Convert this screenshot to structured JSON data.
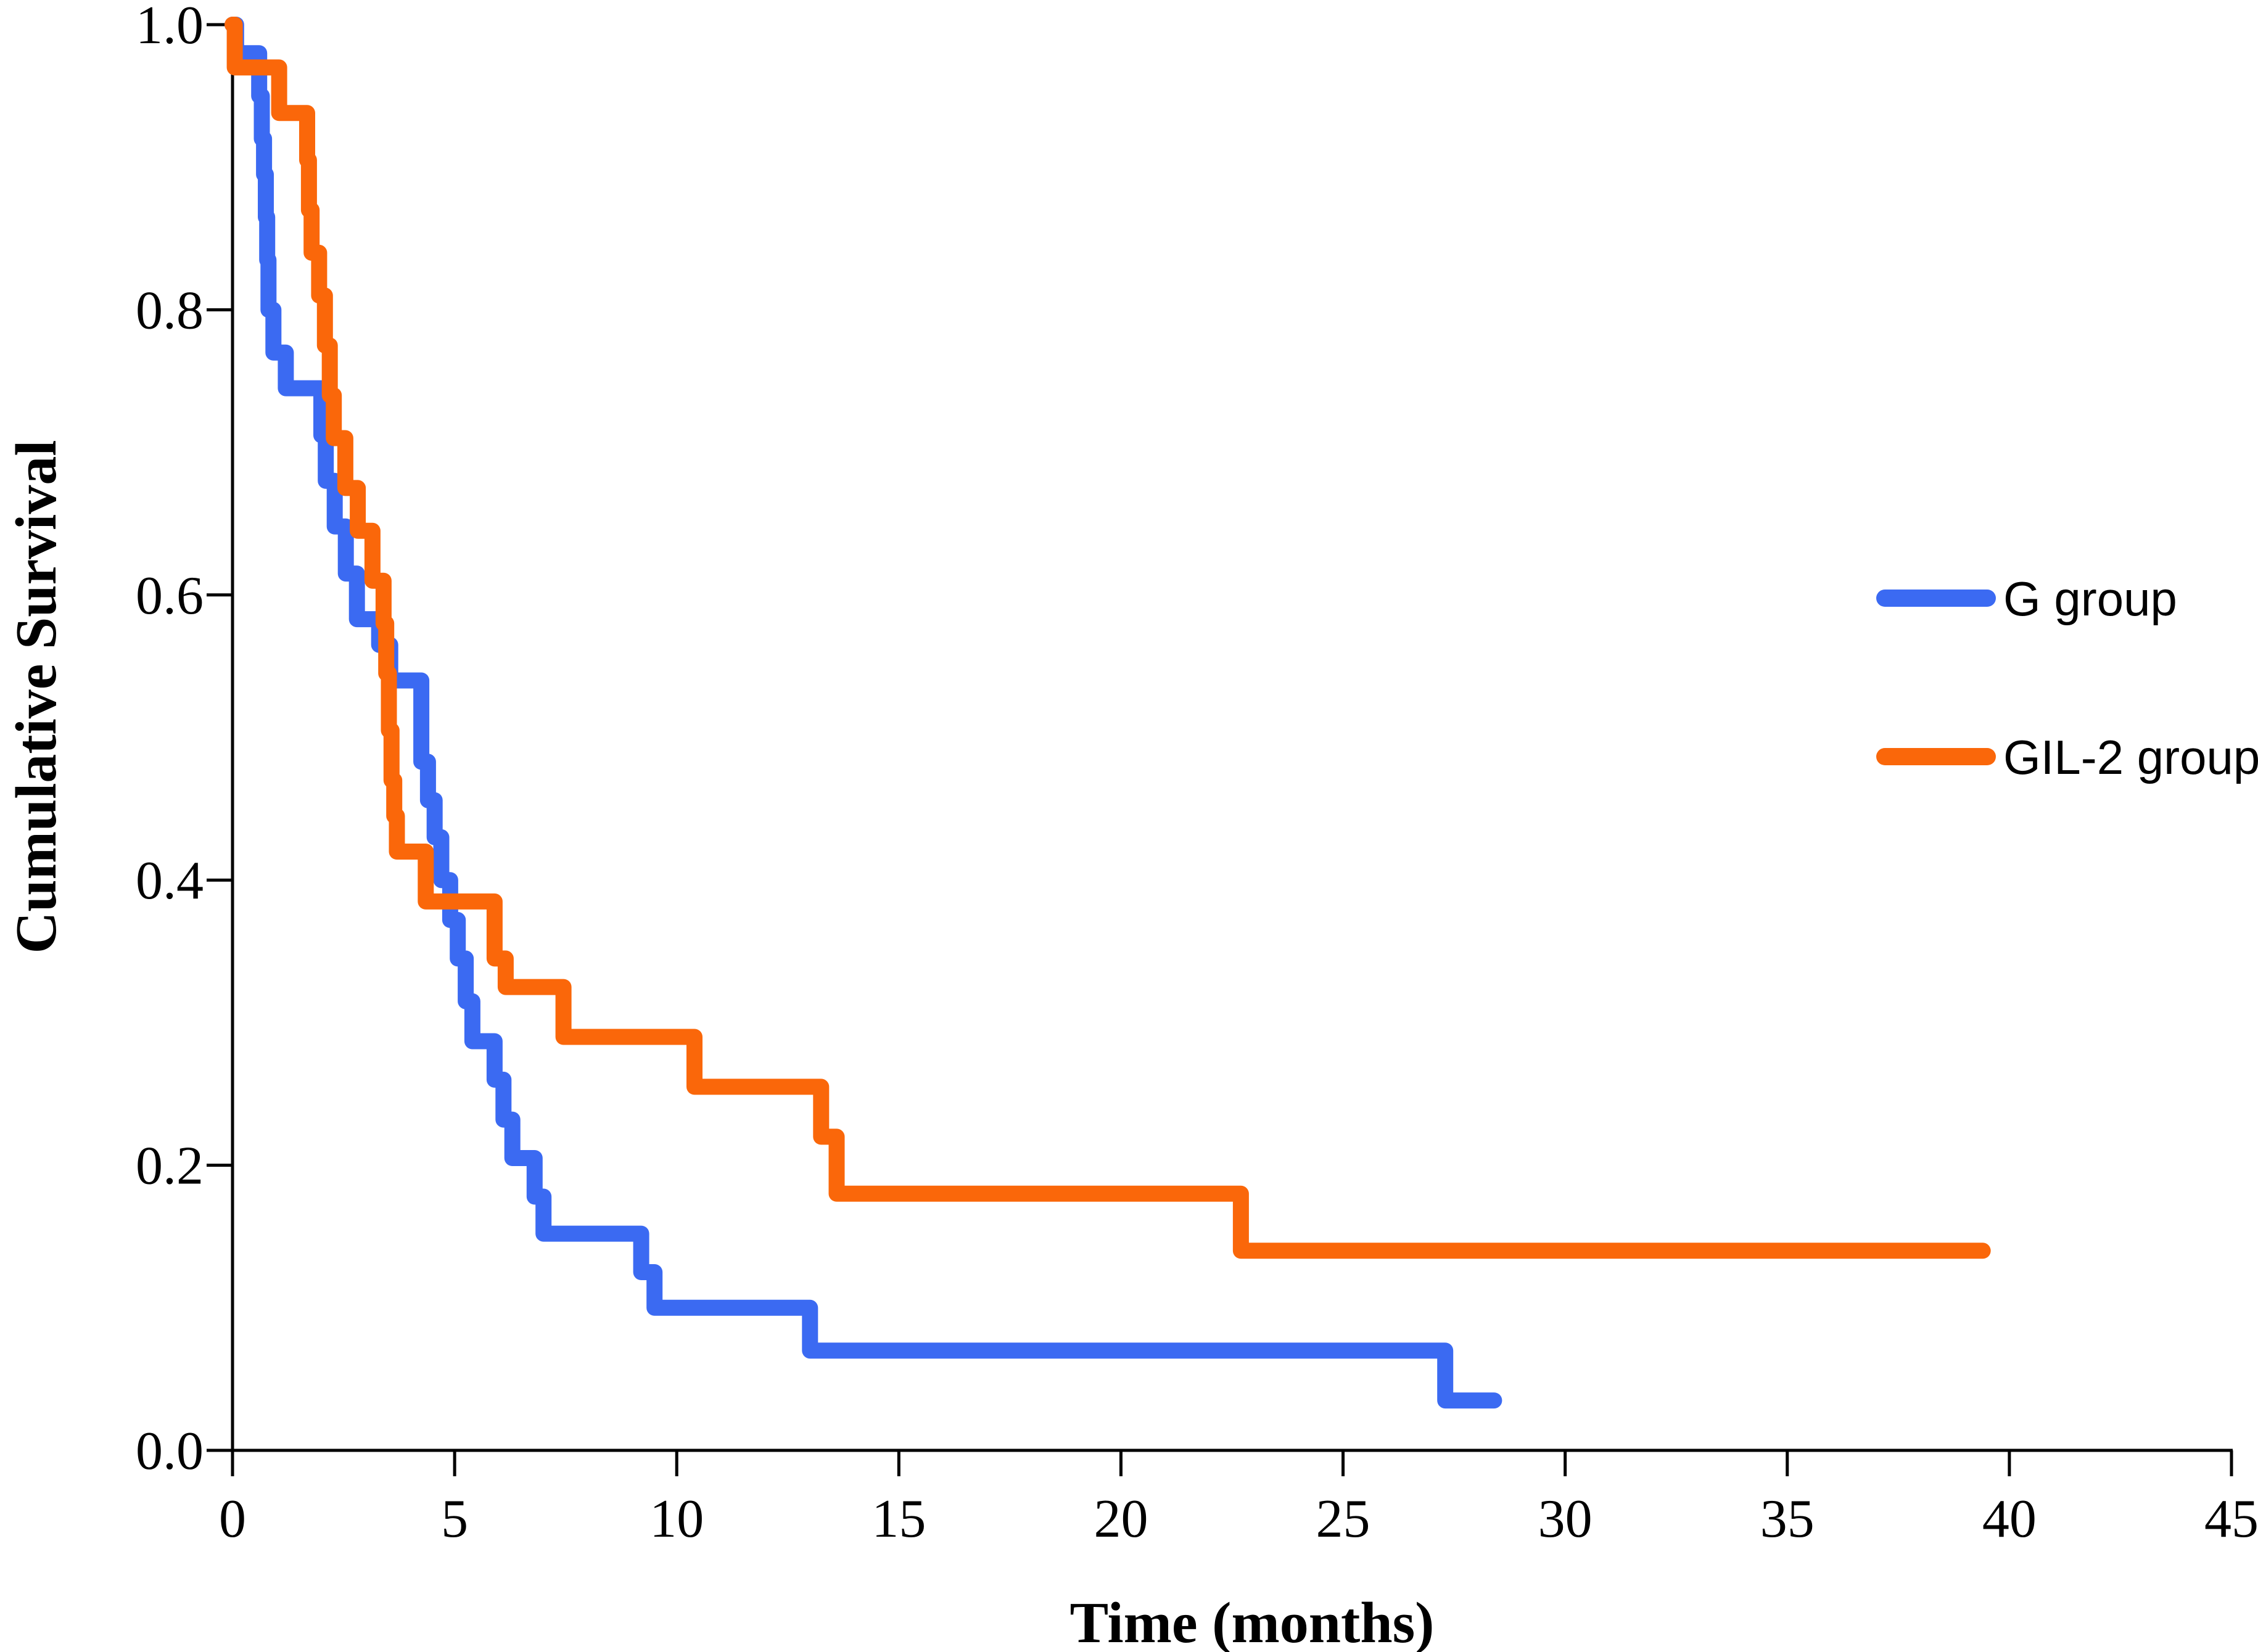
{
  "figure": {
    "background_color": "#ffffff",
    "text_color": "#000000"
  },
  "chart_data": {
    "type": "line",
    "subtype": "kaplan-meier-step-survival",
    "title": "",
    "xlabel": "Time (months)",
    "ylabel": "Cumulative Survival",
    "xlim": [
      0,
      45
    ],
    "ylim": [
      0.0,
      1.0
    ],
    "x_ticks": [
      0,
      5,
      10,
      15,
      20,
      25,
      30,
      35,
      40,
      45
    ],
    "x_tick_labels": [
      "0",
      "5",
      "10",
      "15",
      "20",
      "25",
      "30",
      "35",
      "40",
      "45"
    ],
    "y_ticks": [
      0.0,
      0.2,
      0.4,
      0.6,
      0.8,
      1.0
    ],
    "y_tick_labels": [
      "0.0",
      "0.2",
      "0.4",
      "0.6",
      "0.8",
      "1.0"
    ],
    "grid": false,
    "legend_position": "right-inside",
    "series": [
      {
        "name": "G group",
        "color": "#3B6AF2",
        "start": [
          0,
          1.0
        ],
        "steps": [
          [
            0.08,
            0.98
          ],
          [
            0.6,
            0.95
          ],
          [
            0.66,
            0.92
          ],
          [
            0.71,
            0.895
          ],
          [
            0.75,
            0.865
          ],
          [
            0.78,
            0.835
          ],
          [
            0.81,
            0.8
          ],
          [
            0.92,
            0.77
          ],
          [
            1.2,
            0.745
          ],
          [
            2.0,
            0.712
          ],
          [
            2.1,
            0.68
          ],
          [
            2.3,
            0.648
          ],
          [
            2.55,
            0.615
          ],
          [
            2.8,
            0.583
          ],
          [
            3.3,
            0.565
          ],
          [
            3.55,
            0.54
          ],
          [
            4.25,
            0.483
          ],
          [
            4.4,
            0.456
          ],
          [
            4.55,
            0.43
          ],
          [
            4.7,
            0.4
          ],
          [
            4.9,
            0.372
          ],
          [
            5.07,
            0.345
          ],
          [
            5.25,
            0.315
          ],
          [
            5.4,
            0.287
          ],
          [
            5.9,
            0.26
          ],
          [
            6.1,
            0.232
          ],
          [
            6.3,
            0.205
          ],
          [
            6.8,
            0.178
          ],
          [
            7.0,
            0.152
          ],
          [
            9.2,
            0.125
          ],
          [
            9.5,
            0.1
          ],
          [
            13.0,
            0.07
          ],
          [
            27.3,
            0.035
          ]
        ],
        "end_x": 28.4
      },
      {
        "name": "GIL-2 group",
        "color": "#FA670A",
        "start": [
          0,
          1.0
        ],
        "steps": [
          [
            0.05,
            0.97
          ],
          [
            1.05,
            0.938
          ],
          [
            1.68,
            0.905
          ],
          [
            1.72,
            0.87
          ],
          [
            1.78,
            0.84
          ],
          [
            1.95,
            0.81
          ],
          [
            2.08,
            0.775
          ],
          [
            2.19,
            0.74
          ],
          [
            2.28,
            0.71
          ],
          [
            2.54,
            0.675
          ],
          [
            2.82,
            0.645
          ],
          [
            3.15,
            0.61
          ],
          [
            3.4,
            0.58
          ],
          [
            3.46,
            0.545
          ],
          [
            3.52,
            0.505
          ],
          [
            3.58,
            0.47
          ],
          [
            3.64,
            0.445
          ],
          [
            3.7,
            0.42
          ],
          [
            4.35,
            0.385
          ],
          [
            5.9,
            0.345
          ],
          [
            6.15,
            0.325
          ],
          [
            7.45,
            0.29
          ],
          [
            10.4,
            0.255
          ],
          [
            13.25,
            0.22
          ],
          [
            13.6,
            0.18
          ],
          [
            22.7,
            0.14
          ]
        ],
        "end_x": 39.4
      }
    ]
  }
}
